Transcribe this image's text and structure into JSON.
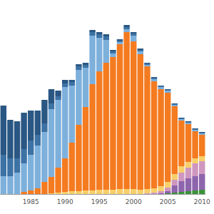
{
  "chart_data": {
    "type": "bar",
    "stacked": true,
    "tick_labels": "x",
    "grid": false,
    "categories": [
      null,
      null,
      null,
      null,
      "1985",
      null,
      null,
      null,
      null,
      "1990",
      null,
      null,
      null,
      null,
      "1995",
      null,
      null,
      null,
      null,
      "2000",
      null,
      null,
      null,
      null,
      "2005",
      null,
      null,
      null,
      null,
      "2010"
    ],
    "ylim": [
      0,
      240
    ],
    "series": [
      {
        "color": "#3a923a",
        "values": [
          0,
          0,
          0,
          0,
          0,
          0,
          0,
          0,
          0,
          0,
          0,
          0,
          0,
          0,
          0,
          0,
          0,
          0,
          0,
          0,
          0,
          0,
          0,
          0,
          1,
          2,
          3,
          4,
          5,
          6
        ]
      },
      {
        "color": "#8e64ad",
        "values": [
          0,
          0,
          0,
          0,
          0,
          0,
          0,
          0,
          0,
          0,
          0,
          0,
          0,
          0,
          0,
          0,
          0,
          0,
          0,
          0,
          0,
          0,
          0,
          1,
          3,
          10,
          15,
          18,
          20,
          22
        ]
      },
      {
        "color": "#cf97c0",
        "values": [
          0,
          0,
          0,
          0,
          0,
          0,
          0,
          0,
          0,
          0,
          0,
          0,
          0,
          0,
          0,
          0,
          0,
          0,
          0,
          0,
          0,
          1,
          2,
          3,
          5,
          8,
          12,
          15,
          18,
          18
        ]
      },
      {
        "color": "#f7cf6a",
        "values": [
          0,
          0,
          0,
          0,
          0,
          0,
          0,
          1,
          2,
          3,
          4,
          4,
          5,
          5,
          6,
          6,
          6,
          7,
          7,
          7,
          6,
          6,
          6,
          7,
          8,
          8,
          9,
          8,
          7,
          7
        ]
      },
      {
        "color": "#f47b20",
        "values": [
          0,
          0,
          0,
          3,
          5,
          8,
          17,
          23,
          35,
          47,
          68,
          93,
          117,
          149,
          166,
          178,
          186,
          203,
          220,
          207,
          190,
          172,
          150,
          136,
          125,
          95,
          64,
          53,
          38,
          30
        ]
      },
      {
        "color": "#7eb0dc",
        "values": [
          25,
          25,
          30,
          40,
          50,
          60,
          70,
          95,
          95,
          100,
          80,
          77,
          55,
          68,
          47,
          32,
          5,
          3,
          4,
          8,
          4,
          2,
          3,
          3,
          3,
          2,
          2,
          2,
          2,
          2
        ]
      },
      {
        "color": "#3d72a4",
        "values": [
          30,
          25,
          20,
          20,
          20,
          15,
          12,
          8,
          5,
          5,
          5,
          5,
          4,
          5,
          5,
          5,
          3,
          2,
          3,
          3,
          2,
          2,
          2,
          1,
          1,
          1,
          1,
          1,
          1,
          1
        ]
      },
      {
        "color": "#2a5783",
        "values": [
          69,
          54,
          52,
          51,
          42,
          34,
          33,
          20,
          8,
          5,
          3,
          3,
          3,
          3,
          3,
          3,
          2,
          2,
          3,
          2,
          2,
          1,
          1,
          1,
          1,
          1,
          1,
          1,
          1,
          1
        ]
      }
    ]
  }
}
